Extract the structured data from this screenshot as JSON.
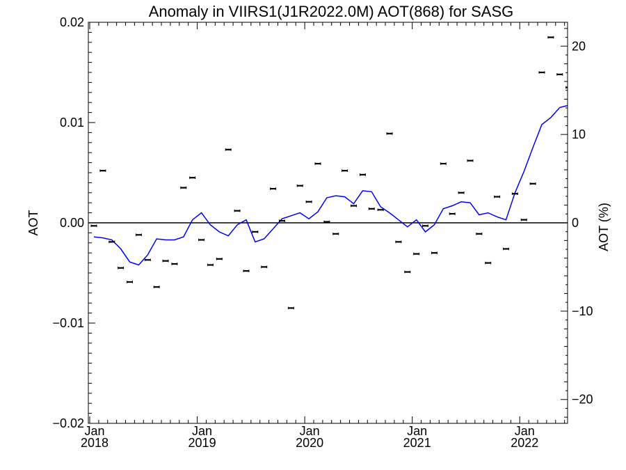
{
  "chart_data": {
    "type": "line",
    "title": "Anomaly in VIIRS1(J1R2022.0M) AOT(868) for SASG",
    "ylabel": "AOT",
    "y2label": "AOT (%)",
    "ylim": [
      -0.02,
      0.02
    ],
    "y2lim": [
      -22.7,
      22.7
    ],
    "y_ticks": [
      {
        "value": -0.02,
        "label": "−0.02"
      },
      {
        "value": -0.01,
        "label": "−0.01"
      },
      {
        "value": 0,
        "label": "0.00"
      },
      {
        "value": 0.01,
        "label": "0.01"
      },
      {
        "value": 0.02,
        "label": "0.02"
      }
    ],
    "y2_ticks": [
      {
        "value": -20,
        "label": "−20"
      },
      {
        "value": -10,
        "label": "−10"
      },
      {
        "value": 0,
        "label": "0"
      },
      {
        "value": 10,
        "label": "10"
      },
      {
        "value": 20,
        "label": "20"
      }
    ],
    "x_range": [
      "2018-01",
      "2022-06"
    ],
    "x_ticks": [
      {
        "date": "2018-01",
        "month": "Jan",
        "year": "2018"
      },
      {
        "date": "2019-01",
        "month": "Jan",
        "year": "2019"
      },
      {
        "date": "2020-01",
        "month": "Jan",
        "year": "2020"
      },
      {
        "date": "2021-01",
        "month": "Jan",
        "year": "2021"
      },
      {
        "date": "2022-01",
        "month": "Jan",
        "year": "2022"
      }
    ],
    "zero_line": true,
    "grid": false,
    "colors": {
      "line": "#0000ff",
      "points": "#000000",
      "axes": "#000000"
    },
    "series": [
      {
        "marker": "errorbar",
        "x": [
          "2018-01",
          "2018-02",
          "2018-03",
          "2018-04",
          "2018-05",
          "2018-06",
          "2018-07",
          "2018-08",
          "2018-09",
          "2018-10",
          "2018-11",
          "2018-12",
          "2019-01",
          "2019-02",
          "2019-03",
          "2019-04",
          "2019-05",
          "2019-06",
          "2019-07",
          "2019-08",
          "2019-09",
          "2019-10",
          "2019-11",
          "2019-12",
          "2020-01",
          "2020-02",
          "2020-03",
          "2020-04",
          "2020-05",
          "2020-06",
          "2020-07",
          "2020-08",
          "2020-09",
          "2020-10",
          "2020-11",
          "2020-12",
          "2021-01",
          "2021-02",
          "2021-03",
          "2021-04",
          "2021-05",
          "2021-06",
          "2021-07",
          "2021-08",
          "2021-09",
          "2021-10",
          "2021-11",
          "2021-12",
          "2022-01",
          "2022-02",
          "2022-03",
          "2022-04",
          "2022-05",
          "2022-06"
        ],
        "y": [
          -0.0003,
          0.0052,
          -0.0019,
          -0.0045,
          -0.0059,
          -0.0012,
          -0.0037,
          -0.0064,
          -0.0038,
          -0.0041,
          0.0035,
          0.0045,
          -0.0017,
          -0.0042,
          -0.0036,
          0.0073,
          0.0012,
          -0.0048,
          -0.0009,
          -0.0044,
          0.0034,
          0.0002,
          -0.0085,
          0.0037,
          0.0021,
          0.0059,
          0.0001,
          -0.0011,
          0.0052,
          0.0017,
          0.0048,
          0.0014,
          0.0013,
          0.0089,
          -0.0019,
          -0.0049,
          -0.0031,
          -0.0003,
          -0.003,
          0.0059,
          0.0009,
          0.003,
          0.0062,
          -0.0011,
          -0.004,
          0.0026,
          -0.0026,
          0.0029,
          0.0003,
          0.0039,
          0.015,
          0.0185,
          0.0148,
          0.0135
        ]
      },
      {
        "marker": "line",
        "x": [
          "2018-01",
          "2018-02",
          "2018-03",
          "2018-04",
          "2018-05",
          "2018-06",
          "2018-07",
          "2018-08",
          "2018-09",
          "2018-10",
          "2018-11",
          "2018-12",
          "2019-01",
          "2019-02",
          "2019-03",
          "2019-04",
          "2019-05",
          "2019-06",
          "2019-07",
          "2019-08",
          "2019-09",
          "2019-10",
          "2019-11",
          "2019-12",
          "2020-01",
          "2020-02",
          "2020-03",
          "2020-04",
          "2020-05",
          "2020-06",
          "2020-07",
          "2020-08",
          "2020-09",
          "2020-10",
          "2020-11",
          "2020-12",
          "2021-01",
          "2021-02",
          "2021-03",
          "2021-04",
          "2021-05",
          "2021-06",
          "2021-07",
          "2021-08",
          "2021-09",
          "2021-10",
          "2021-11",
          "2021-12",
          "2022-01",
          "2022-02",
          "2022-03",
          "2022-04",
          "2022-05",
          "2022-06"
        ],
        "y": [
          -0.0014,
          -0.0015,
          -0.0017,
          -0.0026,
          -0.0039,
          -0.0042,
          -0.0032,
          -0.0016,
          -0.0017,
          -0.0017,
          -0.0014,
          0.0003,
          0.001,
          -0.0002,
          -0.0009,
          -0.0013,
          -0.0002,
          0.0003,
          -0.0019,
          -0.0016,
          -0.0006,
          0.0004,
          0.0007,
          0.001,
          0.0004,
          0.0011,
          0.0025,
          0.0027,
          0.0026,
          0.0019,
          0.0032,
          0.0031,
          0.0016,
          0.001,
          0.0003,
          -0.0004,
          0.0003,
          -0.0009,
          -0.0002,
          0.0014,
          0.0017,
          0.0021,
          0.002,
          0.0008,
          0.001,
          0.0006,
          0.0003,
          0.003,
          0.0051,
          0.0075,
          0.0098,
          0.0105,
          0.0115,
          0.0117
        ]
      }
    ]
  }
}
